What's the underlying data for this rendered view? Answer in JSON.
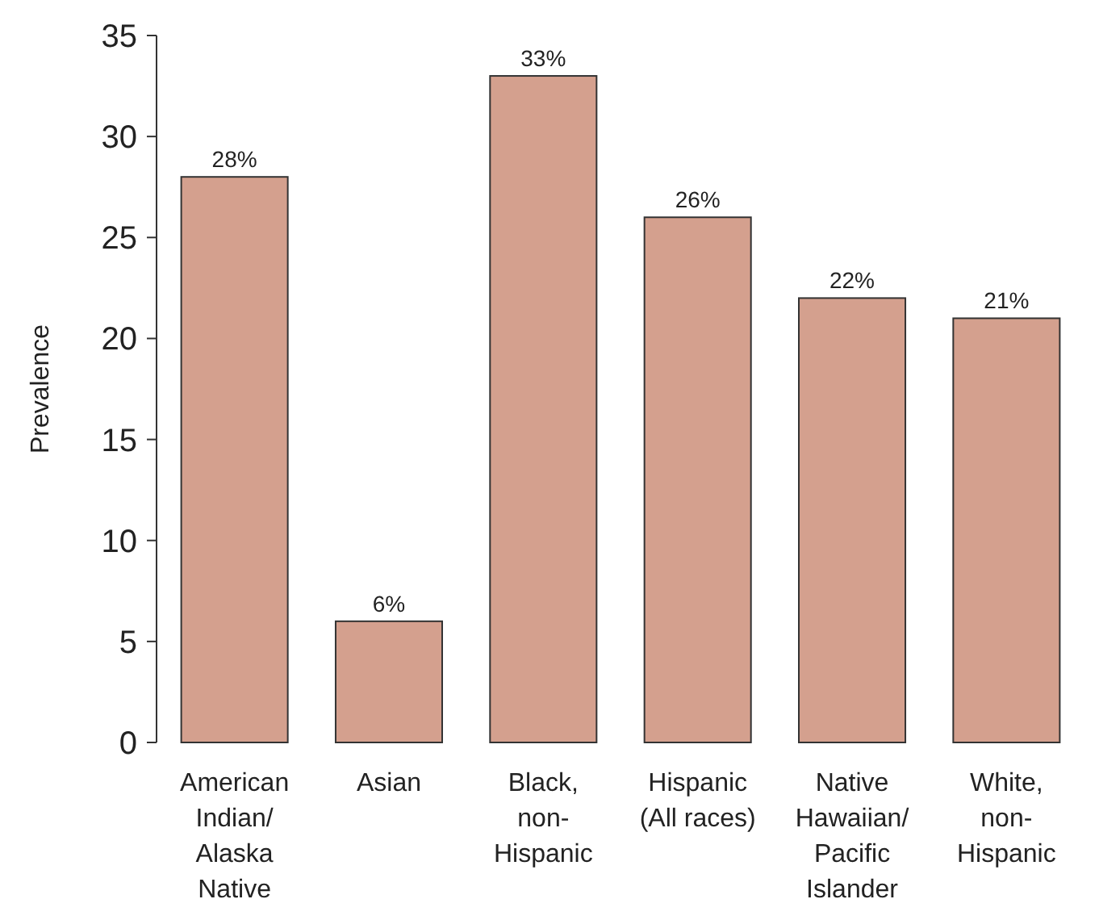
{
  "chart_data": {
    "type": "bar",
    "ylabel": "Prevalence",
    "categories": [
      "American Indian/ Alaska Native",
      "Asian",
      "Black, non- Hispanic",
      "Hispanic (All races)",
      "Native Hawaiian/ Pacific Islander",
      "White, non- Hispanic"
    ],
    "values": [
      28,
      6,
      33,
      26,
      22,
      21
    ],
    "value_labels": [
      "28%",
      "6%",
      "33%",
      "26%",
      "22%",
      "21%"
    ],
    "color": "#d4a08e",
    "ylim": [
      0,
      35
    ],
    "yticks": [
      0,
      5,
      10,
      15,
      20,
      25,
      30,
      35
    ],
    "grid": false
  }
}
